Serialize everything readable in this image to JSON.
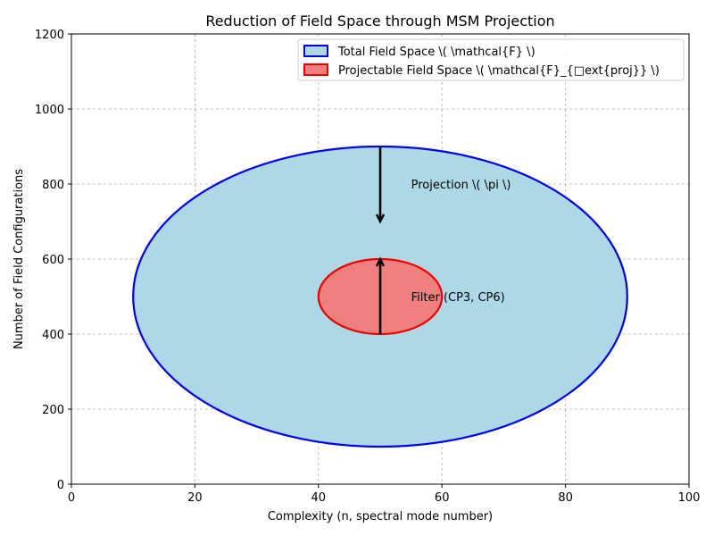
{
  "chart_data": {
    "type": "area",
    "title": "Reduction of Field Space through MSM Projection",
    "xlabel": "Complexity (n, spectral mode number)",
    "ylabel": "Number of Field Configurations",
    "xlim": [
      0,
      100
    ],
    "ylim": [
      0,
      1200
    ],
    "xticks": [
      0,
      20,
      40,
      60,
      80,
      100
    ],
    "yticks": [
      0,
      200,
      400,
      600,
      800,
      1000,
      1200
    ],
    "grid": true,
    "legend_position": "top-right",
    "series": [
      {
        "name": "Total Field Space \\( \\mathcal{F} \\)",
        "shape": "ellipse",
        "center": [
          50,
          500
        ],
        "half_width": 40,
        "half_height": 400,
        "fill": "#add8e6",
        "edge": "#0000ee"
      },
      {
        "name": "Projectable Field Space \\( \\mathcal{F}_{□ext{proj}} \\)",
        "shape": "ellipse",
        "center": [
          50,
          500
        ],
        "half_width": 10,
        "half_height": 100,
        "fill": "#f08080",
        "edge": "#ee0000"
      }
    ],
    "annotations": [
      {
        "text": "Projection \\( \\pi \\)",
        "x": 55,
        "y": 800,
        "arrow_from": [
          50,
          900
        ],
        "arrow_to": [
          50,
          700
        ]
      },
      {
        "text": "Filter (CP3, CP6)",
        "x": 55,
        "y": 500,
        "arrow_from": [
          50,
          400
        ],
        "arrow_to": [
          50,
          600
        ]
      }
    ],
    "colors": {
      "grid": "#b0b0b0",
      "arrow": "#000000"
    }
  }
}
